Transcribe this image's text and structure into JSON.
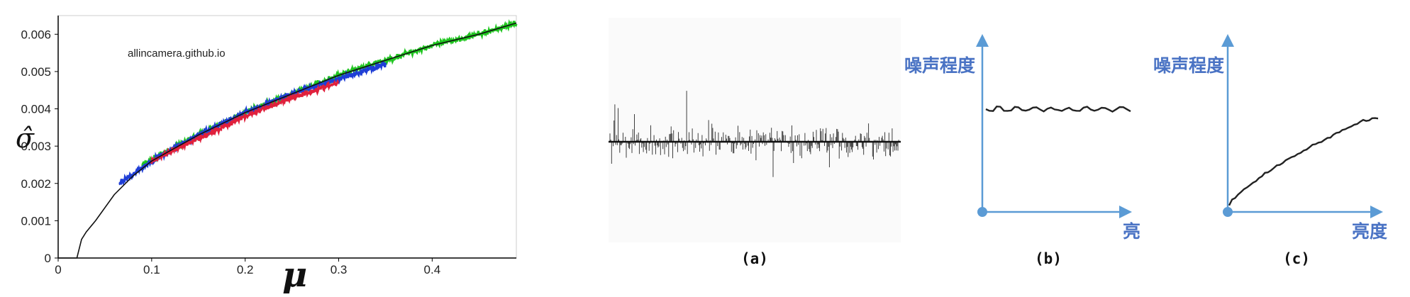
{
  "chart_data": [
    {
      "type": "scatter",
      "title": "",
      "watermark": "allincamera.github.io",
      "xlabel": "μ",
      "ylabel": "σ̂",
      "xlim": [
        0,
        0.49
      ],
      "ylim": [
        0,
        0.0065
      ],
      "x_ticks": [
        "0",
        "0.1",
        "0.2",
        "0.3",
        "0.4"
      ],
      "y_ticks": [
        "0",
        "0.001",
        "0.002",
        "0.003",
        "0.004",
        "0.005",
        "0.006"
      ],
      "fit_curve": {
        "color": "#111111",
        "x": [
          0.02,
          0.025,
          0.03,
          0.04,
          0.06,
          0.08,
          0.1,
          0.15,
          0.2,
          0.25,
          0.3,
          0.35,
          0.4,
          0.45,
          0.49
        ],
        "y": [
          0,
          0.0005,
          0.0007,
          0.001,
          0.0017,
          0.0022,
          0.0026,
          0.0033,
          0.0039,
          0.0044,
          0.0049,
          0.0053,
          0.0057,
          0.006,
          0.0063
        ]
      },
      "series": [
        {
          "color": "#1fc51f",
          "x": [
            0.09,
            0.15,
            0.2,
            0.25,
            0.3,
            0.35,
            0.4,
            0.45,
            0.49
          ],
          "y": [
            0.0025,
            0.0033,
            0.0039,
            0.0044,
            0.0049,
            0.0053,
            0.0057,
            0.006,
            0.0063
          ]
        },
        {
          "color": "#1f3ed6",
          "x": [
            0.065,
            0.1,
            0.15,
            0.2,
            0.25,
            0.3,
            0.35
          ],
          "y": [
            0.002,
            0.0026,
            0.0033,
            0.0039,
            0.0044,
            0.0048,
            0.0052
          ]
        },
        {
          "color": "#e0203c",
          "x": [
            0.1,
            0.15,
            0.2,
            0.25,
            0.3
          ],
          "y": [
            0.0026,
            0.0032,
            0.0038,
            0.0043,
            0.0047
          ]
        }
      ],
      "grid": false
    }
  ],
  "panels": [
    {
      "caption": "(a)"
    },
    {
      "caption": "(b)",
      "y_axis_label": "噪声程度",
      "x_axis_label": "亮"
    },
    {
      "caption": "(c)",
      "y_axis_label": "噪声程度",
      "x_axis_label": "亮度"
    }
  ],
  "colors": {
    "axis_blue": "#5b9bd5",
    "label_blue": "#4a73c4"
  }
}
